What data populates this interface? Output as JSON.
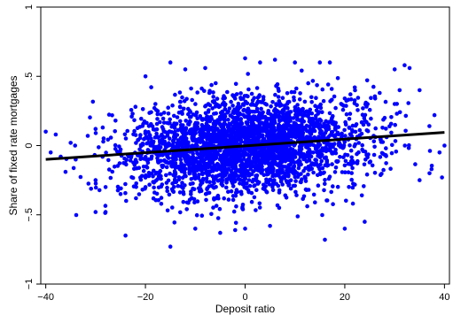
{
  "chart_data": {
    "type": "scatter",
    "xlabel": "Deposit ratio",
    "ylabel": "Share of fixed rate mortgages",
    "xlim": [
      -41,
      41
    ],
    "ylim": [
      -1,
      1
    ],
    "x_ticks": [
      -40,
      -20,
      0,
      20,
      40
    ],
    "x_tick_labels": [
      "−40",
      "−20",
      "0",
      "20",
      "40"
    ],
    "y_ticks": [
      -1,
      -0.5,
      0,
      0.5,
      1
    ],
    "y_tick_labels": [
      "−1",
      "−.5",
      "0",
      ".5",
      "1"
    ],
    "grid": false,
    "legend": "none",
    "point_color": "#0000ff",
    "line_color": "#000000",
    "fit_line": {
      "x": [
        -40,
        40
      ],
      "y": [
        -0.1,
        0.095
      ]
    },
    "scatter_summary": {
      "n_points_approx": 3000,
      "x_center": 0,
      "x_spread_sd": 12,
      "y_center": 0,
      "y_spread_sd": 0.17,
      "seed": 7
    },
    "points": [
      [
        -40,
        0.1
      ],
      [
        -39,
        -0.05
      ],
      [
        -38,
        0.08
      ],
      [
        -37,
        -0.08
      ],
      [
        -35,
        0.02
      ],
      [
        -34,
        -0.1
      ],
      [
        -30,
        -0.48
      ],
      [
        -28,
        -0.48
      ],
      [
        -24,
        -0.65
      ],
      [
        -15,
        -0.73
      ],
      [
        -20,
        0.5
      ],
      [
        -15,
        0.6
      ],
      [
        -12,
        0.55
      ],
      [
        -8,
        0.56
      ],
      [
        0,
        0.63
      ],
      [
        3,
        0.6
      ],
      [
        6,
        0.62
      ],
      [
        10,
        0.6
      ],
      [
        15,
        0.6
      ],
      [
        17,
        0.6
      ],
      [
        30,
        0.55
      ],
      [
        32,
        0.58
      ],
      [
        33,
        0.56
      ],
      [
        31,
        0.4
      ],
      [
        35,
        0.4
      ],
      [
        38,
        0.22
      ],
      [
        40,
        0.0
      ],
      [
        39,
        -0.05
      ],
      [
        37,
        -0.2
      ],
      [
        35,
        -0.25
      ],
      [
        20,
        -0.6
      ],
      [
        24,
        -0.55
      ],
      [
        -5,
        -0.63
      ],
      [
        -10,
        -0.6
      ],
      [
        -2,
        -0.61
      ],
      [
        0,
        -0.6
      ],
      [
        5,
        -0.58
      ],
      [
        16,
        -0.68
      ],
      [
        -20,
        -0.3
      ],
      [
        -25,
        -0.35
      ],
      [
        -28,
        -0.3
      ],
      [
        -30,
        -0.25
      ],
      [
        -22,
        0.28
      ],
      [
        -18,
        0.3
      ],
      [
        -26,
        0.18
      ],
      [
        -30,
        0.12
      ],
      [
        27,
        0.38
      ],
      [
        22,
        0.42
      ],
      [
        28,
        0.2
      ],
      [
        30,
        0.3
      ]
    ]
  }
}
